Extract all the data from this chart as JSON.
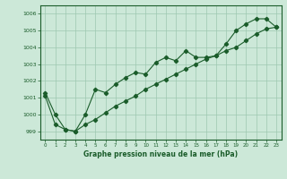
{
  "xlabel": "Graphe pression niveau de la mer (hPa)",
  "bg_color": "#cce8d8",
  "grid_color": "#9dc8b0",
  "line_color": "#1a5c2a",
  "x_ticks": [
    0,
    1,
    2,
    3,
    4,
    5,
    6,
    7,
    8,
    9,
    10,
    11,
    12,
    13,
    14,
    15,
    16,
    17,
    18,
    19,
    20,
    21,
    22,
    23
  ],
  "ylim": [
    998.5,
    1006.5
  ],
  "yticks": [
    999,
    1000,
    1001,
    1002,
    1003,
    1004,
    1005,
    1006
  ],
  "series1": [
    1001.3,
    1000.0,
    999.1,
    999.0,
    1000.0,
    1001.5,
    1001.3,
    1001.8,
    1002.2,
    1002.5,
    1002.4,
    1003.1,
    1003.4,
    1003.2,
    1003.8,
    1003.4,
    1003.4,
    1003.5,
    1004.2,
    1005.0,
    1005.4,
    1005.7,
    1005.7,
    1005.2
  ],
  "series2": [
    1001.1,
    999.4,
    999.1,
    999.0,
    999.4,
    999.7,
    1000.1,
    1000.5,
    1000.8,
    1001.1,
    1001.5,
    1001.8,
    1002.1,
    1002.4,
    1002.7,
    1003.0,
    1003.3,
    1003.5,
    1003.8,
    1004.0,
    1004.4,
    1004.8,
    1005.1,
    1005.2
  ]
}
